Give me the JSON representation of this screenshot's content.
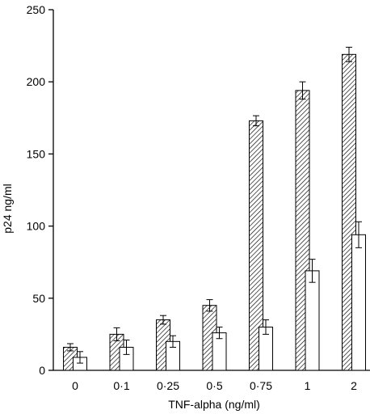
{
  "chart_data": {
    "type": "bar",
    "title": "",
    "xlabel": "TNF-alpha (ng/ml)",
    "ylabel": "p24 ng/ml",
    "categories": [
      "0",
      "0·1",
      "0·25",
      "0·5",
      "0·75",
      "1",
      "2"
    ],
    "ylim": [
      0,
      250
    ],
    "yticks": [
      0,
      50,
      100,
      150,
      200,
      250
    ],
    "grid": false,
    "series": [
      {
        "style": "hatched",
        "color": "#000000",
        "values": [
          16,
          25,
          35,
          45,
          173,
          194,
          219
        ],
        "errors": [
          2.5,
          4.5,
          3,
          4,
          3.5,
          6,
          5
        ]
      },
      {
        "style": "open",
        "color": "#000000",
        "values": [
          9,
          16,
          20,
          26,
          30,
          69,
          94
        ],
        "errors": [
          4,
          5,
          4,
          4,
          5,
          8,
          9
        ]
      }
    ]
  }
}
